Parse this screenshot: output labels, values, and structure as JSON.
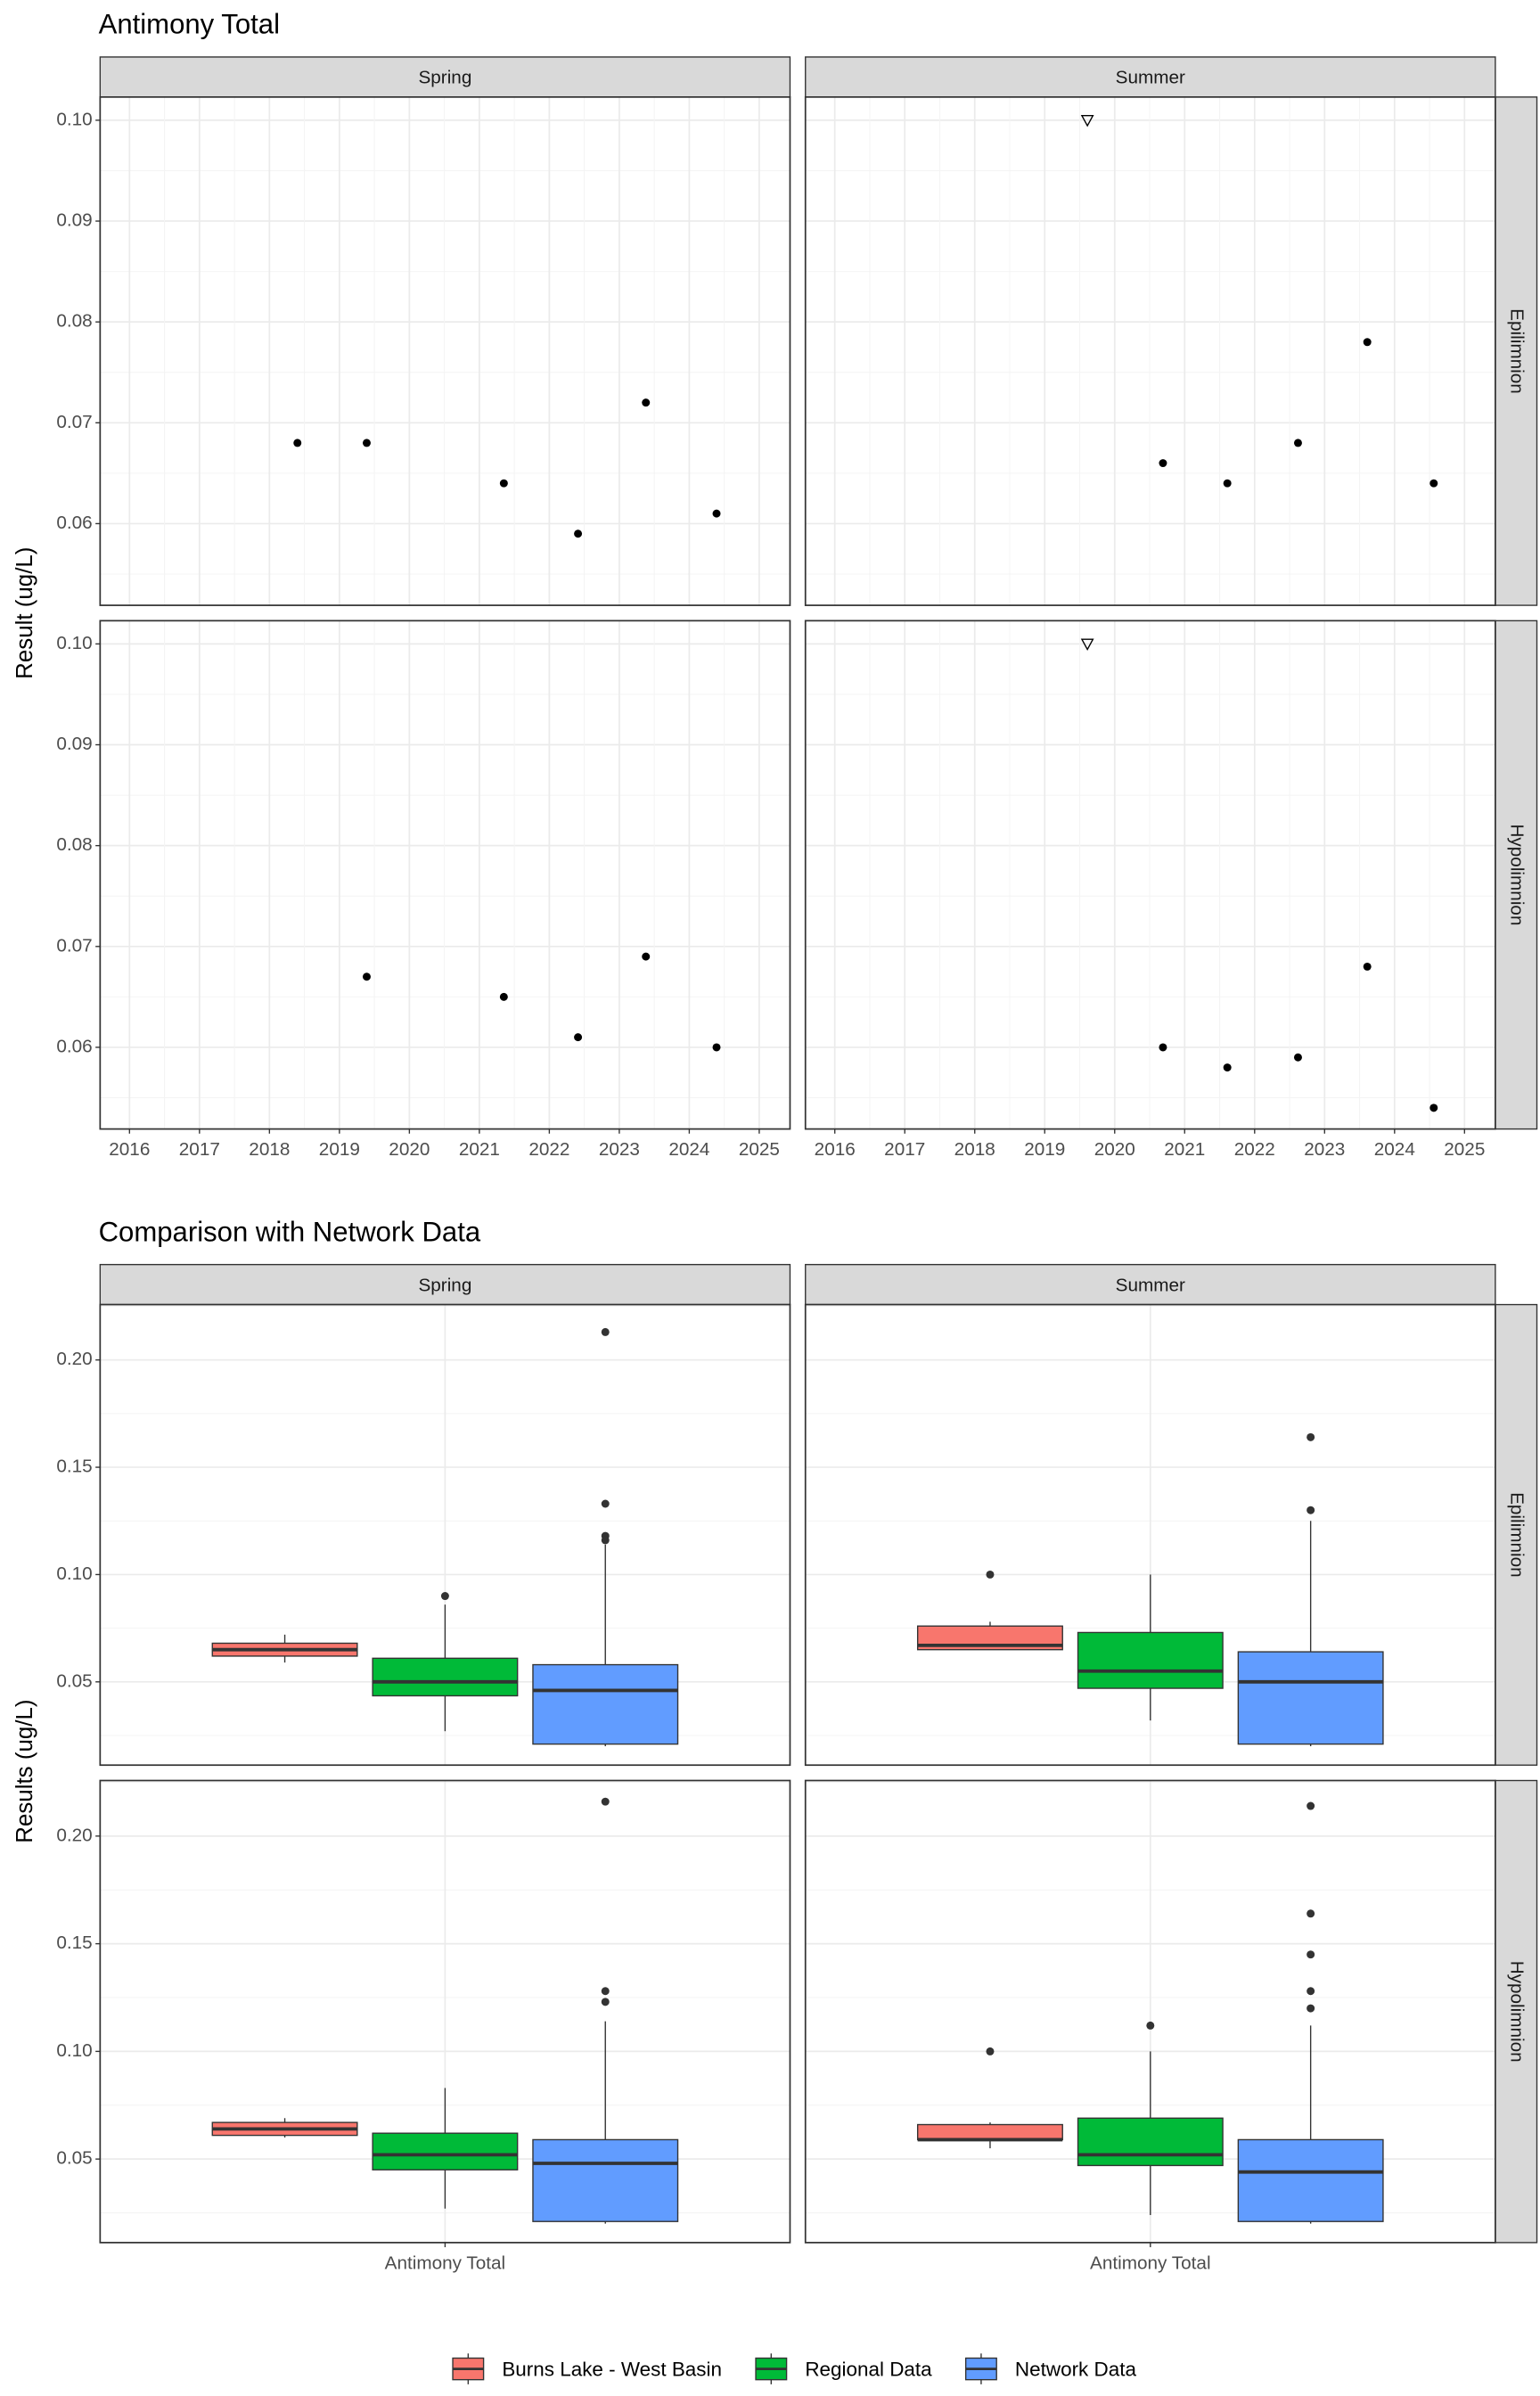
{
  "chart_data": [
    {
      "type": "scatter",
      "title": "Antimony Total",
      "y_label": "Result (ug/L)",
      "columns": [
        "Spring",
        "Summer"
      ],
      "rows": [
        "Epilimnion",
        "Hypolimnion"
      ],
      "xlim": [
        2015.58,
        2025.44
      ],
      "xticks": [
        2016,
        2017,
        2018,
        2019,
        2020,
        2021,
        2022,
        2023,
        2024,
        2025
      ],
      "ylim": [
        0.0519,
        0.1023
      ],
      "yticks": [
        0.06,
        0.07,
        0.08,
        0.09,
        {
          "value": 0.1,
          "label": "0.10"
        }
      ],
      "grid": true,
      "color": "#000000",
      "panels": [
        [
          {
            "x": [
              2018.4,
              2019.39,
              2021.35,
              2022.41,
              2023.38,
              2024.39
            ],
            "values": [
              0.068,
              0.068,
              0.064,
              0.059,
              0.072,
              0.061
            ],
            "markers": [
              "circle",
              "circle",
              "circle",
              "circle",
              "circle",
              "circle"
            ]
          },
          {
            "x": [
              2019.61,
              2020.69,
              2021.61,
              2022.62,
              2023.61,
              2024.56
            ],
            "values": [
              0.1,
              0.066,
              0.064,
              0.068,
              0.078,
              0.064
            ],
            "markers": [
              "triangle-open",
              "circle",
              "circle",
              "circle",
              "circle",
              "circle"
            ]
          }
        ],
        [
          {
            "x": [
              2019.39,
              2021.35,
              2022.41,
              2023.38,
              2024.39
            ],
            "values": [
              0.067,
              0.065,
              0.061,
              0.069,
              0.06
            ],
            "markers": [
              "circle",
              "circle",
              "circle",
              "circle",
              "circle"
            ]
          },
          {
            "x": [
              2019.61,
              2020.69,
              2021.61,
              2022.62,
              2023.61,
              2024.56
            ],
            "values": [
              0.1,
              0.06,
              0.058,
              0.059,
              0.068,
              0.054
            ],
            "markers": [
              "triangle-open",
              "circle",
              "circle",
              "circle",
              "circle",
              "circle"
            ]
          }
        ]
      ]
    },
    {
      "type": "box",
      "title": "Comparison with Network Data",
      "y_label": "Results (ug/L)",
      "columns": [
        "Spring",
        "Summer"
      ],
      "rows": [
        "Epilimnion",
        "Hypolimnion"
      ],
      "categories": [
        "Antimony Total"
      ],
      "ylim": [
        0.0112,
        0.2258
      ],
      "yticks": [
        0.05,
        {
          "value": 0.1,
          "label": "0.10"
        },
        0.15,
        {
          "value": 0.2,
          "label": "0.20"
        }
      ],
      "grid": true,
      "series": [
        {
          "name": "Burns Lake - West Basin",
          "color": "#F8766D"
        },
        {
          "name": "Regional Data",
          "color": "#00BA38"
        },
        {
          "name": "Network Data",
          "color": "#619CFF"
        }
      ],
      "panels": [
        [
          {
            "boxes": [
              {
                "low": 0.059,
                "q1": 0.062,
                "median": 0.065,
                "q3": 0.068,
                "high": 0.072,
                "outliers": []
              },
              {
                "low": 0.027,
                "q1": 0.0435,
                "median": 0.05,
                "q3": 0.061,
                "high": 0.086,
                "outliers": [
                  0.09
                ]
              },
              {
                "low": 0.02,
                "q1": 0.021,
                "median": 0.046,
                "q3": 0.058,
                "high": 0.114,
                "outliers": [
                  0.213,
                  0.133,
                  0.118,
                  0.116
                ]
              }
            ]
          },
          {
            "boxes": [
              {
                "low": 0.065,
                "q1": 0.065,
                "median": 0.067,
                "q3": 0.076,
                "high": 0.078,
                "outliers": [
                  0.1
                ]
              },
              {
                "low": 0.032,
                "q1": 0.047,
                "median": 0.055,
                "q3": 0.073,
                "high": 0.1,
                "outliers": []
              },
              {
                "low": 0.02,
                "q1": 0.021,
                "median": 0.05,
                "q3": 0.064,
                "high": 0.125,
                "outliers": [
                  0.164,
                  0.13
                ]
              }
            ]
          }
        ],
        [
          {
            "boxes": [
              {
                "low": 0.06,
                "q1": 0.061,
                "median": 0.064,
                "q3": 0.067,
                "high": 0.069,
                "outliers": []
              },
              {
                "low": 0.027,
                "q1": 0.045,
                "median": 0.052,
                "q3": 0.062,
                "high": 0.083,
                "outliers": []
              },
              {
                "low": 0.02,
                "q1": 0.021,
                "median": 0.048,
                "q3": 0.059,
                "high": 0.114,
                "outliers": [
                  0.216,
                  0.128,
                  0.123
                ]
              }
            ]
          },
          {
            "boxes": [
              {
                "low": 0.055,
                "q1": 0.059,
                "median": 0.059,
                "q3": 0.066,
                "high": 0.067,
                "outliers": [
                  0.1
                ]
              },
              {
                "low": 0.024,
                "q1": 0.047,
                "median": 0.052,
                "q3": 0.069,
                "high": 0.1,
                "outliers": [
                  0.112
                ]
              },
              {
                "low": 0.02,
                "q1": 0.021,
                "median": 0.044,
                "q3": 0.059,
                "high": 0.112,
                "outliers": [
                  0.214,
                  0.164,
                  0.145,
                  0.128,
                  0.12
                ]
              }
            ]
          }
        ]
      ]
    }
  ]
}
